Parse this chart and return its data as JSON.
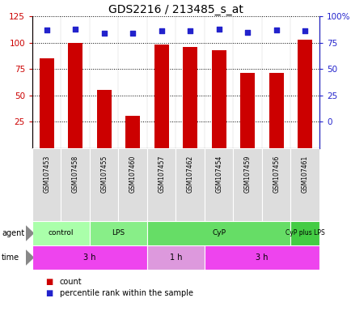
{
  "title": "GDS2216 / 213485_s_at",
  "samples": [
    "GSM107453",
    "GSM107458",
    "GSM107455",
    "GSM107460",
    "GSM107457",
    "GSM107462",
    "GSM107454",
    "GSM107459",
    "GSM107456",
    "GSM107461"
  ],
  "counts": [
    85,
    100,
    55,
    31,
    98,
    96,
    93,
    71,
    71,
    103
  ],
  "percentile_left_vals": [
    112,
    113,
    109,
    109,
    111,
    111,
    113,
    110,
    112,
    111
  ],
  "ylim_left": [
    0,
    125
  ],
  "yticks_left": [
    25,
    50,
    75,
    100,
    125
  ],
  "ylim_right": [
    0,
    100
  ],
  "yticks_right": [
    0,
    25,
    50,
    75,
    100
  ],
  "bar_color": "#cc0000",
  "dot_color": "#2222cc",
  "agent_groups": [
    {
      "label": "control",
      "start": 0,
      "end": 2,
      "color": "#aaffaa"
    },
    {
      "label": "LPS",
      "start": 2,
      "end": 4,
      "color": "#88ee88"
    },
    {
      "label": "CyP",
      "start": 4,
      "end": 9,
      "color": "#66dd66"
    },
    {
      "label": "CyP plus LPS",
      "start": 9,
      "end": 10,
      "color": "#44cc44"
    }
  ],
  "time_groups": [
    {
      "label": "3 h",
      "start": 0,
      "end": 4,
      "color": "#ee44ee"
    },
    {
      "label": "1 h",
      "start": 4,
      "end": 6,
      "color": "#dd99dd"
    },
    {
      "label": "3 h",
      "start": 6,
      "end": 10,
      "color": "#ee44ee"
    }
  ],
  "legend_count_color": "#cc0000",
  "legend_pct_color": "#2222cc",
  "grid_color": "#000000",
  "tick_color_left": "#cc0000",
  "tick_color_right": "#2222cc",
  "bg_color": "#ffffff",
  "sample_box_color": "#dddddd",
  "arrow_color": "#888888",
  "title_fontsize": 10,
  "bar_width": 0.5
}
